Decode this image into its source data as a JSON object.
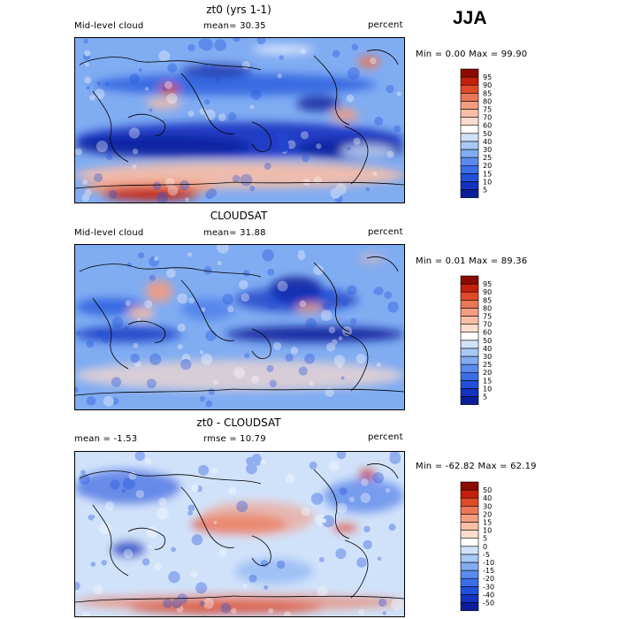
{
  "season": "JJA",
  "chart_data": [
    {
      "type": "heatmap",
      "title": "zt0 (yrs 1-1)",
      "left_label": "Mid-level cloud",
      "stat_text": "mean=  30.35",
      "units": "percent",
      "range_text": "Min =   0.00 Max =  99.90",
      "colorbar_ticks": [
        "95",
        "90",
        "85",
        "80",
        "75",
        "70",
        "60",
        "50",
        "40",
        "30",
        "25",
        "20",
        "15",
        "10",
        "5"
      ],
      "colors": [
        "#0a1e9a",
        "#1432c0",
        "#2050dc",
        "#3a6ee8",
        "#5a8cee",
        "#80acf2",
        "#a8c8f6",
        "#d0e2fa",
        "#ffffff",
        "#fcdccc",
        "#f8bea6",
        "#f49c80",
        "#ec7656",
        "#e04a28",
        "#c4200a",
        "#8c0a02"
      ]
    },
    {
      "type": "heatmap",
      "title": "CLOUDSAT",
      "left_label": "Mid-level cloud",
      "stat_text": "mean=  31.88",
      "units": "percent",
      "range_text": "Min =   0.01 Max =  89.36",
      "colorbar_ticks": [
        "95",
        "90",
        "85",
        "80",
        "75",
        "70",
        "60",
        "50",
        "40",
        "30",
        "25",
        "20",
        "15",
        "10",
        "5"
      ],
      "colors": [
        "#0a1e9a",
        "#1432c0",
        "#2050dc",
        "#3a6ee8",
        "#5a8cee",
        "#80acf2",
        "#a8c8f6",
        "#d0e2fa",
        "#ffffff",
        "#fcdccc",
        "#f8bea6",
        "#f49c80",
        "#ec7656",
        "#e04a28",
        "#c4200a",
        "#8c0a02"
      ]
    },
    {
      "type": "heatmap",
      "title": "zt0 - CLOUDSAT",
      "left_label": "mean =   -1.53",
      "stat_text": "rmse =  10.79",
      "units": "percent",
      "range_text": "Min = -62.82 Max =  62.19",
      "colorbar_ticks": [
        "50",
        "40",
        "30",
        "20",
        "15",
        "10",
        "5",
        "0",
        "-5",
        "-10",
        "-15",
        "-20",
        "-30",
        "-40",
        "-50"
      ],
      "colors": [
        "#0a1e9a",
        "#1432c0",
        "#2050dc",
        "#3a6ee8",
        "#5a8cee",
        "#80acf2",
        "#a8c8f6",
        "#d0e2fa",
        "#ffffff",
        "#fcdccc",
        "#f8bea6",
        "#f49c80",
        "#ec7656",
        "#e04a28",
        "#c4200a",
        "#8c0a02"
      ]
    }
  ]
}
